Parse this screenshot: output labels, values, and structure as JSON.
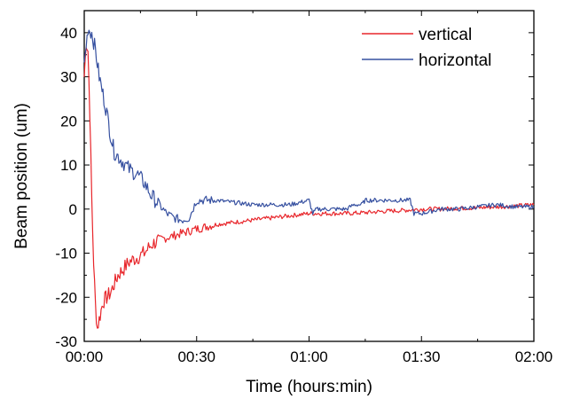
{
  "chart_data": {
    "type": "line",
    "xlabel": "Time (hours:min)",
    "ylabel": "Beam position (um)",
    "xlim": [
      0,
      120
    ],
    "ylim": [
      -30,
      45
    ],
    "x_ticks": [
      {
        "value": 0,
        "label": "00:00"
      },
      {
        "value": 30,
        "label": "00:30"
      },
      {
        "value": 60,
        "label": "01:00"
      },
      {
        "value": 90,
        "label": "01:30"
      },
      {
        "value": 120,
        "label": "02:00"
      }
    ],
    "y_ticks": [
      {
        "value": -30,
        "label": "-30"
      },
      {
        "value": -20,
        "label": "-20"
      },
      {
        "value": -10,
        "label": "-10"
      },
      {
        "value": 0,
        "label": "0"
      },
      {
        "value": 10,
        "label": "10"
      },
      {
        "value": 20,
        "label": "20"
      },
      {
        "value": 30,
        "label": "30"
      },
      {
        "value": 40,
        "label": "40"
      }
    ],
    "legend_position": "top-right",
    "grid": false,
    "series": [
      {
        "name": "vertical",
        "color": "#e8262b",
        "x": [
          0,
          0.5,
          1,
          1.5,
          2,
          2.5,
          3,
          3.5,
          4,
          5,
          6,
          7,
          8,
          9,
          10,
          12,
          14,
          16,
          18,
          20,
          22,
          24,
          26,
          28,
          30,
          35,
          40,
          45,
          50,
          55,
          60,
          65,
          70,
          75,
          80,
          85,
          90,
          95,
          100,
          105,
          110,
          115,
          120
        ],
        "y": [
          30,
          38,
          36,
          22,
          2,
          -12,
          -22,
          -27,
          -25,
          -21,
          -20,
          -19,
          -17,
          -15,
          -14,
          -12,
          -11,
          -10,
          -8,
          -7,
          -6.5,
          -6,
          -5.5,
          -5,
          -4.5,
          -3.5,
          -3,
          -2.5,
          -2,
          -1.5,
          -1,
          -1,
          -1,
          -0.8,
          -0.5,
          -0.3,
          0,
          0,
          0.2,
          0.3,
          0.5,
          0.7,
          1
        ]
      },
      {
        "name": "horizontal",
        "color": "#3650a0",
        "x": [
          0,
          1,
          2,
          3,
          4,
          5,
          6,
          7,
          8,
          9,
          10,
          12,
          14,
          16,
          18,
          20,
          22,
          24,
          26,
          28,
          30,
          32,
          35,
          40,
          45,
          50,
          55,
          60,
          61,
          62,
          65,
          70,
          72,
          74,
          75,
          80,
          85,
          87,
          88,
          90,
          95,
          100,
          105,
          110,
          115,
          120
        ],
        "y": [
          33,
          41,
          40,
          36,
          30,
          26,
          22,
          17,
          13,
          12,
          11,
          9,
          8,
          6,
          3,
          1,
          -1,
          -2,
          -2.5,
          -2,
          2,
          2,
          2,
          1.5,
          1,
          1,
          1,
          2,
          -1,
          0,
          0,
          0,
          1,
          1,
          2,
          2,
          2,
          2,
          -1,
          -1,
          0,
          0,
          0.5,
          1,
          0.5,
          0.5
        ]
      }
    ]
  }
}
